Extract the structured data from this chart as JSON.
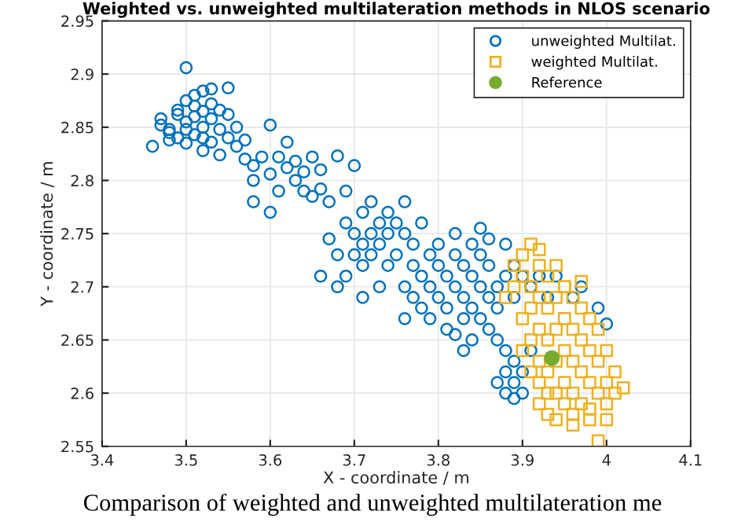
{
  "chart_data": {
    "type": "scatter",
    "title": "Weighted vs. unweighted multilateration methods in NLOS scenario",
    "xlabel": "X - coordinate / m",
    "ylabel": "Y - coordinate / m",
    "annotations": [
      "Comparison of weighted and unweighted multilateration me"
    ],
    "xlim": [
      3.4,
      4.1
    ],
    "ylim": [
      2.55,
      2.95
    ],
    "xticks": [
      3.4,
      3.5,
      3.6,
      3.7,
      3.8,
      3.9,
      4,
      4.1
    ],
    "yticks": [
      2.55,
      2.6,
      2.65,
      2.7,
      2.75,
      2.8,
      2.85,
      2.9,
      2.95
    ],
    "grid": true,
    "legend": "top right",
    "series": [
      {
        "name": "unweighted Multilat.",
        "color": "#0072bd",
        "marker": "circle",
        "x": [
          3.46,
          3.47,
          3.47,
          3.48,
          3.48,
          3.49,
          3.49,
          3.49,
          3.5,
          3.5,
          3.5,
          3.51,
          3.51,
          3.51,
          3.52,
          3.52,
          3.52,
          3.52,
          3.53,
          3.53,
          3.53,
          3.53,
          3.54,
          3.54,
          3.54,
          3.55,
          3.55,
          3.55,
          3.56,
          3.56,
          3.5,
          3.48,
          3.5,
          3.51,
          3.52,
          3.57,
          3.57,
          3.58,
          3.58,
          3.59,
          3.6,
          3.6,
          3.61,
          3.62,
          3.62,
          3.63,
          3.63,
          3.64,
          3.65,
          3.66,
          3.66,
          3.68,
          3.7,
          3.69,
          3.64,
          3.58,
          3.61,
          3.65,
          3.67,
          3.6,
          3.67,
          3.68,
          3.69,
          3.69,
          3.7,
          3.7,
          3.71,
          3.71,
          3.71,
          3.72,
          3.72,
          3.72,
          3.73,
          3.73,
          3.73,
          3.74,
          3.74,
          3.74,
          3.75,
          3.75,
          3.76,
          3.77,
          3.77,
          3.71,
          3.66,
          3.68,
          3.76,
          3.76,
          3.77,
          3.78,
          3.78,
          3.79,
          3.79,
          3.79,
          3.8,
          3.8,
          3.8,
          3.81,
          3.81,
          3.81,
          3.82,
          3.82,
          3.82,
          3.83,
          3.83,
          3.83,
          3.84,
          3.84,
          3.84,
          3.84,
          3.85,
          3.85,
          3.85,
          3.86,
          3.86,
          3.86,
          3.87,
          3.87,
          3.87,
          3.88,
          3.88,
          3.89,
          3.89,
          3.9,
          3.83,
          3.82,
          3.85,
          3.86,
          3.91,
          3.92,
          3.93,
          3.94,
          3.96,
          3.97,
          3.99,
          4.0,
          3.78,
          3.76,
          3.88,
          3.88,
          3.87,
          3.88,
          3.89,
          3.9,
          3.9,
          3.89,
          3.91,
          3.89
        ],
        "values": [
          2.832,
          2.852,
          2.858,
          2.845,
          2.838,
          2.84,
          2.862,
          2.866,
          2.875,
          2.855,
          2.848,
          2.87,
          2.88,
          2.86,
          2.884,
          2.865,
          2.85,
          2.84,
          2.886,
          2.872,
          2.858,
          2.836,
          2.866,
          2.848,
          2.824,
          2.862,
          2.84,
          2.887,
          2.85,
          2.832,
          2.906,
          2.848,
          2.835,
          2.843,
          2.828,
          2.838,
          2.82,
          2.814,
          2.8,
          2.822,
          2.852,
          2.806,
          2.822,
          2.836,
          2.812,
          2.818,
          2.8,
          2.808,
          2.822,
          2.81,
          2.792,
          2.823,
          2.814,
          2.79,
          2.79,
          2.78,
          2.79,
          2.785,
          2.78,
          2.77,
          2.745,
          2.73,
          2.76,
          2.71,
          2.75,
          2.73,
          2.77,
          2.74,
          2.72,
          2.78,
          2.75,
          2.73,
          2.76,
          2.74,
          2.7,
          2.77,
          2.75,
          2.72,
          2.76,
          2.73,
          2.75,
          2.74,
          2.72,
          2.69,
          2.71,
          2.7,
          2.78,
          2.7,
          2.69,
          2.71,
          2.68,
          2.73,
          2.7,
          2.67,
          2.74,
          2.72,
          2.69,
          2.71,
          2.68,
          2.66,
          2.75,
          2.73,
          2.7,
          2.72,
          2.69,
          2.67,
          2.74,
          2.71,
          2.68,
          2.65,
          2.73,
          2.7,
          2.67,
          2.72,
          2.69,
          2.66,
          2.7,
          2.68,
          2.65,
          2.74,
          2.71,
          2.72,
          2.69,
          2.71,
          2.64,
          2.655,
          2.755,
          2.745,
          2.7,
          2.71,
          2.69,
          2.71,
          2.69,
          2.7,
          2.68,
          2.665,
          2.76,
          2.67,
          2.64,
          2.62,
          2.61,
          2.6,
          2.61,
          2.62,
          2.6,
          2.63,
          2.64,
          2.595
        ]
      },
      {
        "name": "weighted Multilat.",
        "color": "#edb120",
        "marker": "square",
        "x": [
          3.88,
          3.89,
          3.89,
          3.9,
          3.91,
          3.92,
          3.9,
          3.91,
          3.91,
          3.92,
          3.92,
          3.92,
          3.93,
          3.93,
          3.93,
          3.93,
          3.94,
          3.94,
          3.94,
          3.94,
          3.94,
          3.95,
          3.95,
          3.95,
          3.95,
          3.95,
          3.96,
          3.96,
          3.96,
          3.96,
          3.96,
          3.97,
          3.97,
          3.97,
          3.97,
          3.98,
          3.98,
          3.98,
          3.98,
          3.99,
          3.99,
          3.99,
          4.0,
          4.0,
          4.0,
          4.01,
          4.01,
          4.02,
          3.99,
          3.95,
          3.97,
          3.93,
          3.92,
          3.92,
          3.91,
          3.9,
          3.94,
          3.96,
          3.98,
          4.0,
          3.91,
          3.92,
          3.93,
          3.9
        ],
        "values": [
          2.69,
          2.7,
          2.72,
          2.73,
          2.74,
          2.735,
          2.71,
          2.7,
          2.68,
          2.72,
          2.69,
          2.66,
          2.71,
          2.68,
          2.65,
          2.62,
          2.72,
          2.69,
          2.66,
          2.63,
          2.6,
          2.7,
          2.67,
          2.64,
          2.61,
          2.59,
          2.69,
          2.66,
          2.63,
          2.6,
          2.58,
          2.68,
          2.65,
          2.62,
          2.59,
          2.67,
          2.64,
          2.61,
          2.585,
          2.66,
          2.63,
          2.6,
          2.64,
          2.61,
          2.59,
          2.62,
          2.6,
          2.605,
          2.555,
          2.7,
          2.705,
          2.6,
          2.63,
          2.61,
          2.65,
          2.67,
          2.575,
          2.57,
          2.575,
          2.575,
          2.62,
          2.59,
          2.58,
          2.64
        ]
      },
      {
        "name": "Reference",
        "color": "#77ac30",
        "marker": "filled circle",
        "x": [
          3.935
        ],
        "values": [
          2.633
        ]
      }
    ]
  }
}
